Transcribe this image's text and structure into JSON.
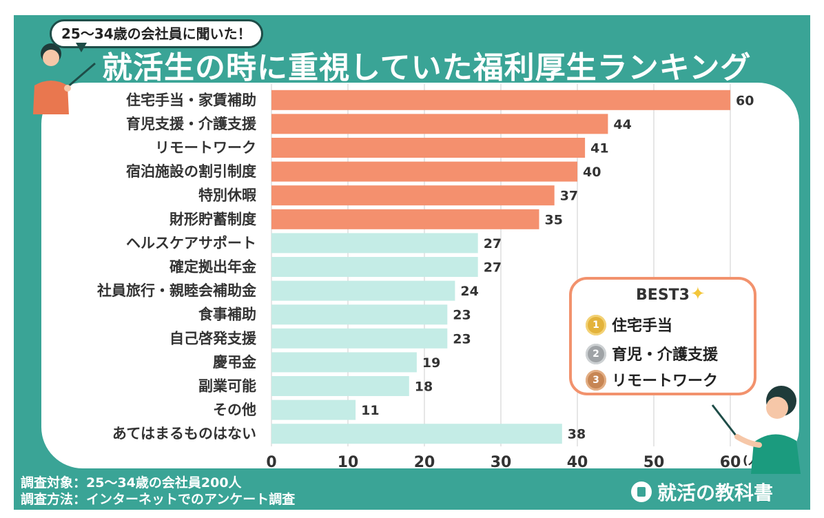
{
  "header": {
    "bubble_text": "25〜34歳の会社員に聞いた！",
    "title": "就活生の時に重視していた福利厚生ランキング"
  },
  "chart_data": {
    "type": "bar",
    "orientation": "horizontal",
    "categories": [
      "住宅手当・家賃補助",
      "育児支援・介護支援",
      "リモートワーク",
      "宿泊施設の割引制度",
      "特別休暇",
      "財形貯蓄制度",
      "ヘルスケアサポート",
      "確定拠出年金",
      "社員旅行・親睦会補助金",
      "食事補助",
      "自己啓発支援",
      "慶弔金",
      "副業可能",
      "その他",
      "あてはまるものはない"
    ],
    "values": [
      60,
      44,
      41,
      40,
      37,
      35,
      27,
      27,
      24,
      23,
      23,
      19,
      18,
      11,
      38
    ],
    "xlim": [
      0,
      60
    ],
    "xticks": [
      0,
      10,
      20,
      30,
      40,
      50,
      60
    ],
    "unit": "(人)",
    "highlight_top_n": 6,
    "grid": true
  },
  "best3": {
    "title": "BEST3",
    "items": [
      {
        "rank": "1",
        "label": "住宅手当"
      },
      {
        "rank": "2",
        "label": "育児・介護支援"
      },
      {
        "rank": "3",
        "label": "リモートワーク"
      }
    ]
  },
  "footer": {
    "subject": "調査対象：25〜34歳の会社員200人",
    "method": "調査方法：インターネットでのアンケート調査",
    "logo": "就活の教科書"
  },
  "colors": {
    "background": "#3aa496",
    "highlight_bar": "#f4906e",
    "normal_bar": "#c4ece6",
    "grid": "#dddddd"
  }
}
